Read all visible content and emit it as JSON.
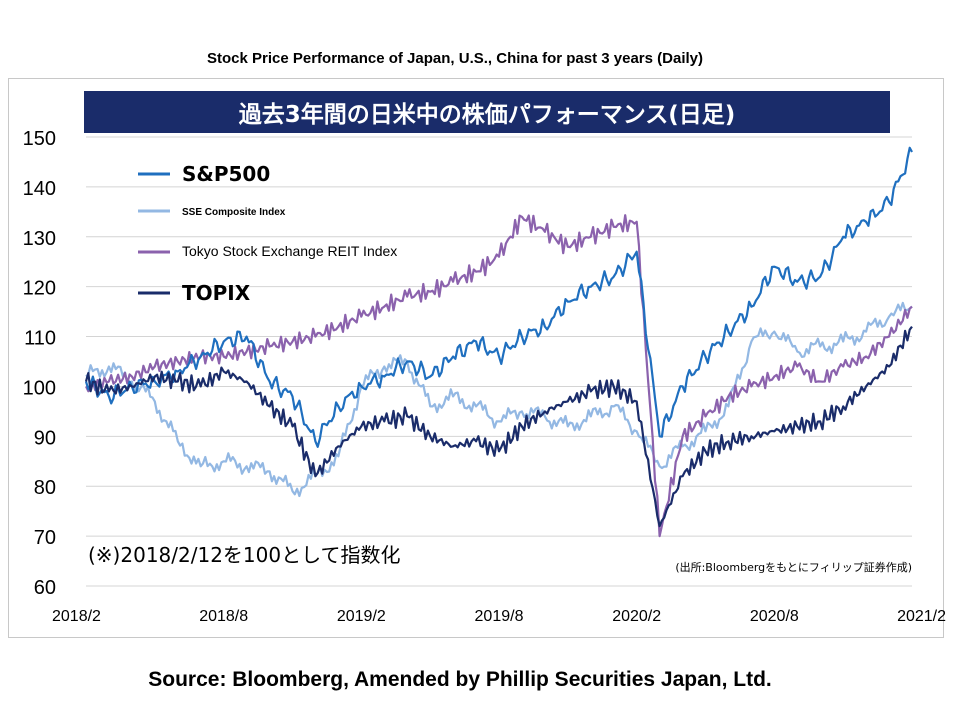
{
  "header": {
    "title": "Stock Price Performance of Japan, U.S., China for past 3 years (Daily)"
  },
  "chart_data": {
    "type": "line",
    "title": "過去3年間の日米中の株価パフォーマンス(日足)",
    "note": "(※)2018/2/12を100として指数化",
    "credit": "(出所:Bloombergをもとにフィリップ証券作成)",
    "xlabel": "",
    "ylabel": "",
    "x_ticks": [
      "2018/2",
      "2018/8",
      "2019/2",
      "2019/8",
      "2020/2",
      "2020/8",
      "2021/2"
    ],
    "x": [
      "2018/2",
      "2018/3",
      "2018/4",
      "2018/5",
      "2018/6",
      "2018/7",
      "2018/8",
      "2018/9",
      "2018/10",
      "2018/11",
      "2018/12",
      "2019/1",
      "2019/2",
      "2019/3",
      "2019/4",
      "2019/5",
      "2019/6",
      "2019/7",
      "2019/8",
      "2019/9",
      "2019/10",
      "2019/11",
      "2019/12",
      "2020/1",
      "2020/2",
      "2020/3",
      "2020/4",
      "2020/5",
      "2020/6",
      "2020/7",
      "2020/8",
      "2020/9",
      "2020/10",
      "2020/11",
      "2020/12",
      "2021/1",
      "2021/2"
    ],
    "ylim": [
      60,
      150
    ],
    "y_ticks": [
      60,
      70,
      80,
      90,
      100,
      110,
      120,
      130,
      140,
      150
    ],
    "grid": true,
    "legend_position": "top-left",
    "series": [
      {
        "name": "S&P500",
        "color": "#1f6fbf",
        "values": [
          101,
          98,
          100,
          101,
          103,
          106,
          109,
          110,
          101,
          98,
          89,
          96,
          100,
          102,
          105,
          102,
          106,
          109,
          106,
          110,
          112,
          117,
          120,
          122,
          127,
          90,
          100,
          106,
          111,
          116,
          124,
          121,
          122,
          130,
          133,
          137,
          147
        ]
      },
      {
        "name": "SSE Composite Index",
        "color": "#93b8e3",
        "values": [
          102,
          104,
          101,
          97,
          89,
          84,
          85,
          84,
          83,
          79,
          82,
          86,
          100,
          104,
          105,
          96,
          98,
          96,
          93,
          95,
          94,
          92,
          94,
          96,
          91,
          84,
          88,
          91,
          96,
          109,
          111,
          107,
          108,
          109,
          111,
          114,
          116
        ]
      },
      {
        "name": "Tokyo Stock Exchange REIT Index",
        "color": "#8b62ad",
        "values": [
          100,
          101,
          102,
          104,
          105,
          106,
          106,
          107,
          108,
          109,
          110,
          112,
          114,
          116,
          118,
          119,
          121,
          123,
          126,
          134,
          131,
          128,
          130,
          132,
          133,
          70,
          90,
          94,
          98,
          100,
          102,
          104,
          101,
          104,
          106,
          110,
          116
        ]
      },
      {
        "name": "TOPIX",
        "color": "#1a2c6a",
        "values": [
          101,
          99,
          100,
          102,
          101,
          100,
          103,
          101,
          96,
          92,
          82,
          88,
          92,
          93,
          94,
          90,
          88,
          89,
          87,
          92,
          95,
          97,
          99,
          100,
          97,
          72,
          82,
          87,
          89,
          90,
          91,
          92,
          93,
          96,
          100,
          104,
          112
        ]
      }
    ]
  }
}
